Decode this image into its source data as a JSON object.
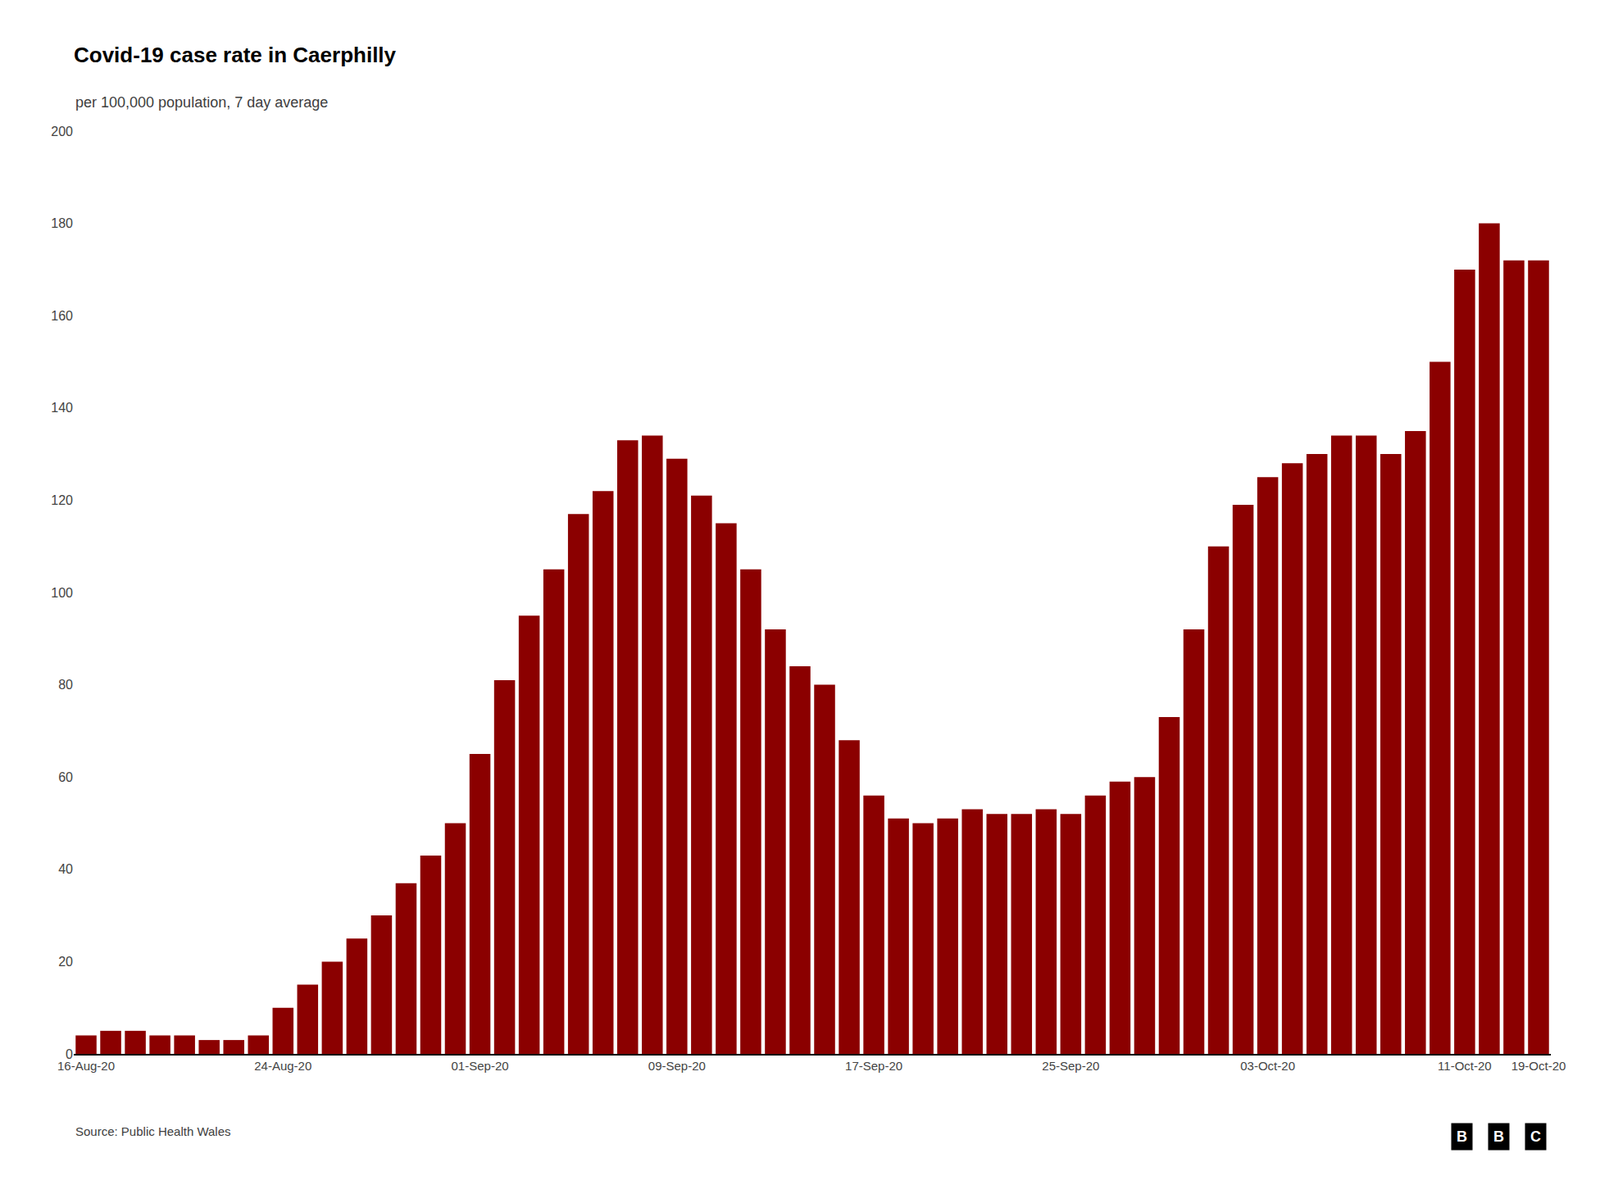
{
  "chart_data": {
    "type": "bar",
    "title": "Covid-19 case rate in Caerphilly",
    "subtitle": "per 100,000 population, 7 day average",
    "source": "Source: Public Health Wales",
    "annotations": [
      "B",
      "B",
      "C"
    ],
    "categories": [
      "16-Aug-20",
      null,
      null,
      null,
      null,
      null,
      null,
      null,
      "24-Aug-20",
      null,
      null,
      null,
      null,
      null,
      null,
      null,
      "01-Sep-20",
      null,
      null,
      null,
      null,
      null,
      null,
      null,
      "09-Sep-20",
      null,
      null,
      null,
      null,
      null,
      null,
      null,
      "17-Sep-20",
      null,
      null,
      null,
      null,
      null,
      null,
      null,
      "25-Sep-20",
      null,
      null,
      null,
      null,
      null,
      null,
      null,
      "03-Oct-20",
      null,
      null,
      null,
      null,
      null,
      null,
      null,
      "11-Oct-20",
      null,
      null,
      "19-Oct-20"
    ],
    "values": [
      4,
      5,
      5,
      4,
      4,
      3,
      3,
      4,
      10,
      15,
      20,
      25,
      30,
      37,
      43,
      50,
      65,
      81,
      95,
      105,
      117,
      122,
      133,
      134,
      129,
      121,
      115,
      105,
      92,
      84,
      80,
      68,
      56,
      51,
      50,
      51,
      53,
      52,
      52,
      53,
      52,
      56,
      59,
      60,
      73,
      92,
      110,
      119,
      125,
      128,
      130,
      134,
      134,
      130,
      135,
      150,
      170,
      180,
      172,
      172
    ],
    "color": "#8B0000",
    "ylim": [
      0,
      200
    ],
    "yticks": [
      0,
      20,
      40,
      60,
      80,
      100,
      120,
      140,
      160,
      180,
      200
    ],
    "grid": false
  }
}
